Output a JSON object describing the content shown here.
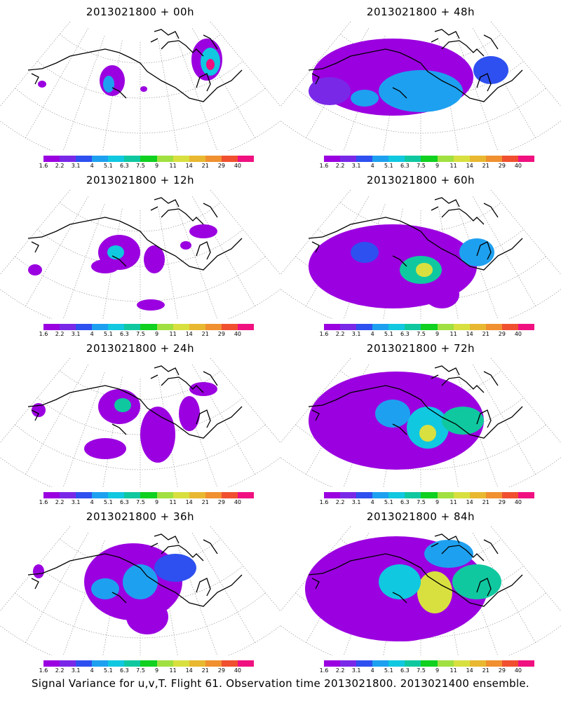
{
  "panels": [
    {
      "title": "2013021800 + 00h"
    },
    {
      "title": "2013021800 + 48h"
    },
    {
      "title": "2013021800 + 12h"
    },
    {
      "title": "2013021800 + 60h"
    },
    {
      "title": "2013021800 + 24h"
    },
    {
      "title": "2013021800 + 72h"
    },
    {
      "title": "2013021800 + 36h"
    },
    {
      "title": "2013021800 + 84h"
    }
  ],
  "colorbar": {
    "colors": [
      "#9b00e0",
      "#7a28e8",
      "#2e50f0",
      "#1ea0f0",
      "#10c8e0",
      "#10c8a0",
      "#10d020",
      "#a0e040",
      "#d8e040",
      "#e8b830",
      "#f09030",
      "#f05030",
      "#f01080"
    ],
    "labels": [
      "1.6",
      "2.2",
      "3.1",
      "4",
      "5.1",
      "6.3",
      "7.5",
      "9",
      "11",
      "14",
      "21",
      "29",
      "40"
    ]
  },
  "footer": "Signal Variance for u,v,T. Flight 61. Observation time 2013021800. 2013021400 ensemble."
}
